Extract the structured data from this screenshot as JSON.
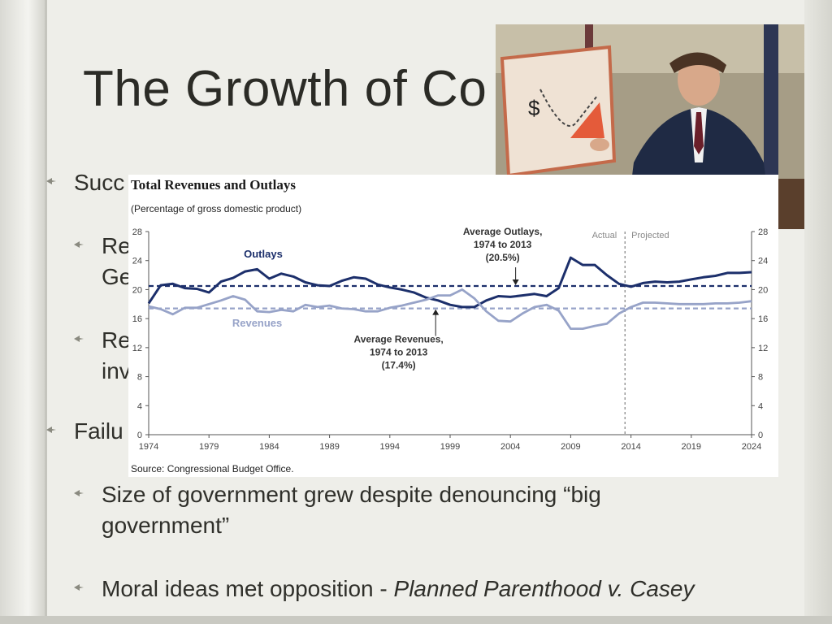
{
  "slide": {
    "title": "The Growth of Co",
    "bullets": [
      {
        "text": "Succ"
      },
      {
        "text": "Re\nGe"
      },
      {
        "text": "Re\ninv"
      },
      {
        "text": "Failu"
      },
      {
        "text": "Size of government grew despite denouncing “big government”"
      },
      {
        "text_before": "Moral ideas met opposition - ",
        "text_italic": "Planned Parenthood v. Casey"
      }
    ]
  },
  "photo": {
    "board_text": "$",
    "icon": "presentation-photo-icon"
  },
  "chart_data": {
    "type": "line",
    "title": "Total Revenues and Outlays",
    "subtitle": "(Percentage of gross domestic product)",
    "source": "Source:    Congressional Budget Office.",
    "x_tick_labels": [
      "1974",
      "1979",
      "1984",
      "1989",
      "1994",
      "1999",
      "2004",
      "2009",
      "2014",
      "2019",
      "2024"
    ],
    "y_ticks": [
      0,
      4,
      8,
      12,
      16,
      20,
      24,
      28
    ],
    "xlim": [
      1974,
      2024
    ],
    "ylim": [
      0,
      28
    ],
    "projection_start": 2013.5,
    "labels": {
      "actual": "Actual",
      "projected": "Projected"
    },
    "series": [
      {
        "name": "Outlays",
        "color": "#1c2f6b",
        "x": [
          1974,
          1975,
          1976,
          1977,
          1978,
          1979,
          1980,
          1981,
          1982,
          1983,
          1984,
          1985,
          1986,
          1987,
          1988,
          1989,
          1990,
          1991,
          1992,
          1993,
          1994,
          1995,
          1996,
          1997,
          1998,
          1999,
          2000,
          2001,
          2002,
          2003,
          2004,
          2005,
          2006,
          2007,
          2008,
          2009,
          2010,
          2011,
          2012,
          2013,
          2014,
          2015,
          2016,
          2017,
          2018,
          2019,
          2020,
          2021,
          2022,
          2023,
          2024
        ],
        "values": [
          18.1,
          20.6,
          20.8,
          20.2,
          20.1,
          19.6,
          21.1,
          21.6,
          22.5,
          22.8,
          21.5,
          22.2,
          21.8,
          21.0,
          20.6,
          20.5,
          21.2,
          21.7,
          21.5,
          20.7,
          20.3,
          20.0,
          19.6,
          18.9,
          18.5,
          17.9,
          17.6,
          17.6,
          18.5,
          19.1,
          19.0,
          19.2,
          19.4,
          19.1,
          20.2,
          24.4,
          23.4,
          23.4,
          22.0,
          20.8,
          20.4,
          20.9,
          21.1,
          21.0,
          21.1,
          21.4,
          21.7,
          21.9,
          22.3,
          22.3,
          22.4
        ]
      },
      {
        "name": "Revenues",
        "color": "#97a3c8",
        "x": [
          1974,
          1975,
          1976,
          1977,
          1978,
          1979,
          1980,
          1981,
          1982,
          1983,
          1984,
          1985,
          1986,
          1987,
          1988,
          1989,
          1990,
          1991,
          1992,
          1993,
          1994,
          1995,
          1996,
          1997,
          1998,
          1999,
          2000,
          2001,
          2002,
          2003,
          2004,
          2005,
          2006,
          2007,
          2008,
          2009,
          2010,
          2011,
          2012,
          2013,
          2014,
          2015,
          2016,
          2017,
          2018,
          2019,
          2020,
          2021,
          2022,
          2023,
          2024
        ],
        "values": [
          17.7,
          17.3,
          16.6,
          17.5,
          17.5,
          18.0,
          18.5,
          19.1,
          18.6,
          17.0,
          16.9,
          17.2,
          17.0,
          17.9,
          17.6,
          17.8,
          17.4,
          17.3,
          17.0,
          17.0,
          17.5,
          17.8,
          18.2,
          18.6,
          19.2,
          19.2,
          20.0,
          18.8,
          17.0,
          15.7,
          15.6,
          16.7,
          17.6,
          17.9,
          17.1,
          14.6,
          14.6,
          15.0,
          15.3,
          16.7,
          17.6,
          18.2,
          18.2,
          18.1,
          18.0,
          18.0,
          18.0,
          18.1,
          18.1,
          18.2,
          18.4
        ]
      }
    ],
    "averages": [
      {
        "name": "Average Outlays",
        "value": 20.5,
        "color": "#1c2f6b",
        "label_lines": [
          "Average Outlays,",
          "1974 to 2013",
          "(20.5%)"
        ]
      },
      {
        "name": "Average Revenues",
        "value": 17.4,
        "color": "#97a3c8",
        "label_lines": [
          "Average Revenues,",
          "1974 to 2013",
          "(17.4%)"
        ]
      }
    ]
  }
}
